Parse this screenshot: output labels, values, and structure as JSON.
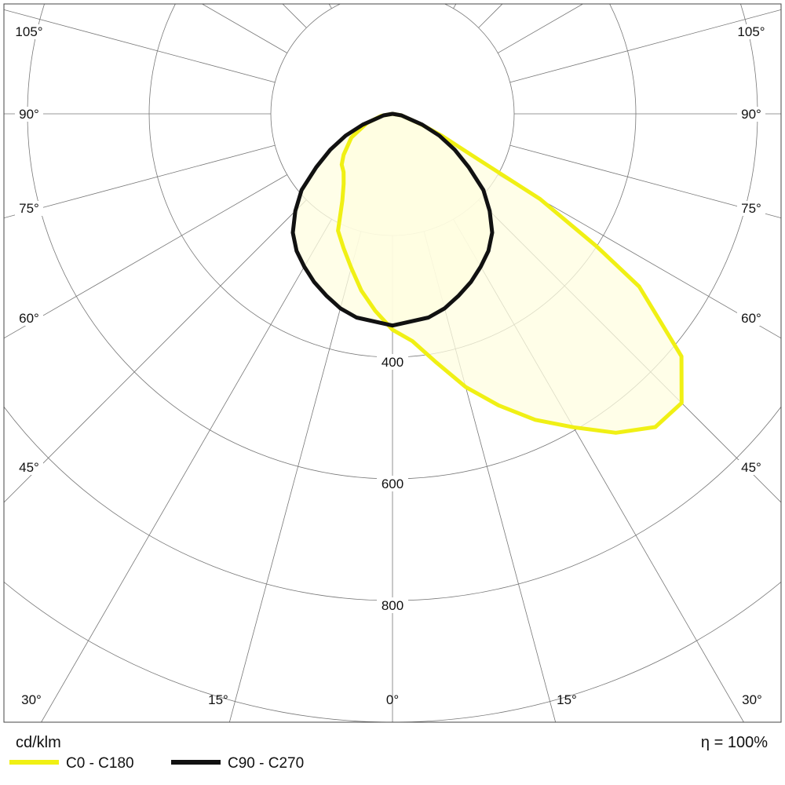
{
  "chart_data": {
    "type": "polar",
    "unit_label": "cd/klm",
    "efficiency_label": "η = 100%",
    "radial_ticks": [
      200,
      400,
      600,
      800,
      1000
    ],
    "radial_tick_labels": [
      "400",
      "600",
      "800"
    ],
    "angle_labels": {
      "bottom": [
        "30°",
        "15°",
        "0°",
        "15°",
        "30°"
      ],
      "sides": [
        "45°",
        "60°",
        "75°",
        "90°",
        "105°"
      ]
    },
    "angle_step_deg": 15,
    "grid": true,
    "series": [
      {
        "name": "C0 - C180",
        "color": "#f0f014",
        "c0": {
          "angles": [
            0,
            5,
            10,
            15,
            20,
            25,
            30,
            35,
            40,
            45,
            50,
            55,
            57,
            60,
            62,
            66,
            70,
            80,
            90
          ],
          "values": [
            355,
            375,
            415,
            465,
            510,
            555,
            595,
            640,
            672,
            672,
            620,
            495,
            400,
            280,
            160,
            89,
            50,
            15,
            0
          ]
        },
        "c180": {
          "angles": [
            0,
            5,
            10,
            15,
            20,
            25,
            30,
            35,
            40,
            45,
            50,
            60,
            70,
            80,
            90
          ],
          "values": [
            350,
            325,
            295,
            262,
            235,
            212,
            165,
            140,
            125,
            118,
            105,
            78,
            45,
            18,
            0
          ]
        }
      },
      {
        "name": "C90 - C270",
        "color": "#111111",
        "c90": {
          "angles": [
            0,
            10,
            15,
            20,
            25,
            30,
            35,
            40,
            45,
            50,
            55,
            60,
            65,
            70,
            80,
            90
          ],
          "values": [
            348,
            340,
            331,
            318,
            305,
            290,
            275,
            255,
            226,
            195,
            153,
            118,
            85,
            52,
            15,
            0
          ]
        },
        "c270": {
          "angles": [
            0,
            10,
            15,
            20,
            25,
            30,
            35,
            40,
            45,
            50,
            55,
            60,
            65,
            70,
            80,
            90
          ],
          "values": [
            348,
            340,
            331,
            318,
            305,
            290,
            275,
            255,
            226,
            195,
            153,
            118,
            85,
            52,
            15,
            0
          ]
        }
      }
    ],
    "legend": [
      "C0 - C180",
      "C90 - C270"
    ],
    "legend_placement": "bottom-left",
    "fill_color": "#fffde0"
  }
}
